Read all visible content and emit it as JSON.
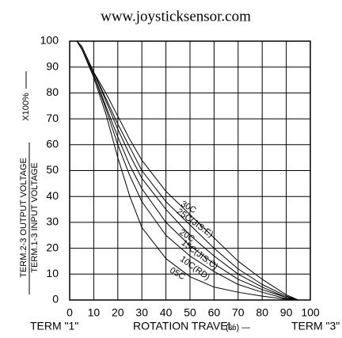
{
  "chart_data": {
    "type": "line",
    "title": "www.joysticksensor.com",
    "y_label": {
      "numerator": "TERM.2-3 OUTPUT VOLTAGE",
      "denominator": "TERM.1-3 INPUT VOLTAGE",
      "unit": "X100%"
    },
    "x_label": "ROTATION TRAVEL",
    "x_unit": "(%) —",
    "x_start_label": "TERM \"1\"",
    "x_end_label": "TERM \"3\"",
    "x": [
      0,
      3,
      5,
      10,
      15,
      20,
      25,
      30,
      40,
      50,
      60,
      70,
      80,
      90,
      95,
      100
    ],
    "series": [
      {
        "name": "30C",
        "color": "#000000",
        "values": [
          100,
          100,
          98,
          88,
          80,
          71,
          62,
          54,
          42,
          33,
          24,
          15,
          8,
          2,
          0,
          0
        ]
      },
      {
        "name": "25C(JIS:E)",
        "color": "#000000",
        "values": [
          100,
          100,
          98,
          88,
          78,
          68,
          59,
          50,
          38,
          29,
          20,
          12,
          6,
          1.5,
          0,
          0
        ]
      },
      {
        "name": "20C",
        "color": "#000000",
        "values": [
          100,
          100,
          98,
          88,
          77,
          66,
          56,
          47,
          35,
          25,
          17,
          10,
          5,
          1,
          0,
          0
        ]
      },
      {
        "name": "15C(JIS:C)",
        "color": "#000000",
        "values": [
          100,
          100,
          97,
          87,
          75,
          63,
          52,
          43,
          30,
          21,
          14,
          8,
          4,
          1,
          0,
          0
        ]
      },
      {
        "name": "10C(RD)",
        "color": "#000000",
        "values": [
          100,
          100,
          97,
          87,
          74,
          60,
          48,
          38,
          25,
          17,
          11,
          6,
          3,
          0.5,
          0,
          0
        ]
      },
      {
        "name": "05C",
        "color": "#000000",
        "values": [
          100,
          100,
          97,
          86,
          72,
          55,
          40,
          28,
          16,
          9,
          5,
          3,
          1.5,
          0.3,
          0,
          0
        ]
      }
    ],
    "xlim": [
      0,
      100
    ],
    "ylim": [
      0,
      100
    ],
    "xticks": [
      0,
      10,
      20,
      30,
      40,
      50,
      60,
      70,
      80,
      90,
      100
    ],
    "yticks": [
      0,
      10,
      20,
      30,
      40,
      50,
      60,
      70,
      80,
      90,
      100
    ],
    "grid": true
  }
}
